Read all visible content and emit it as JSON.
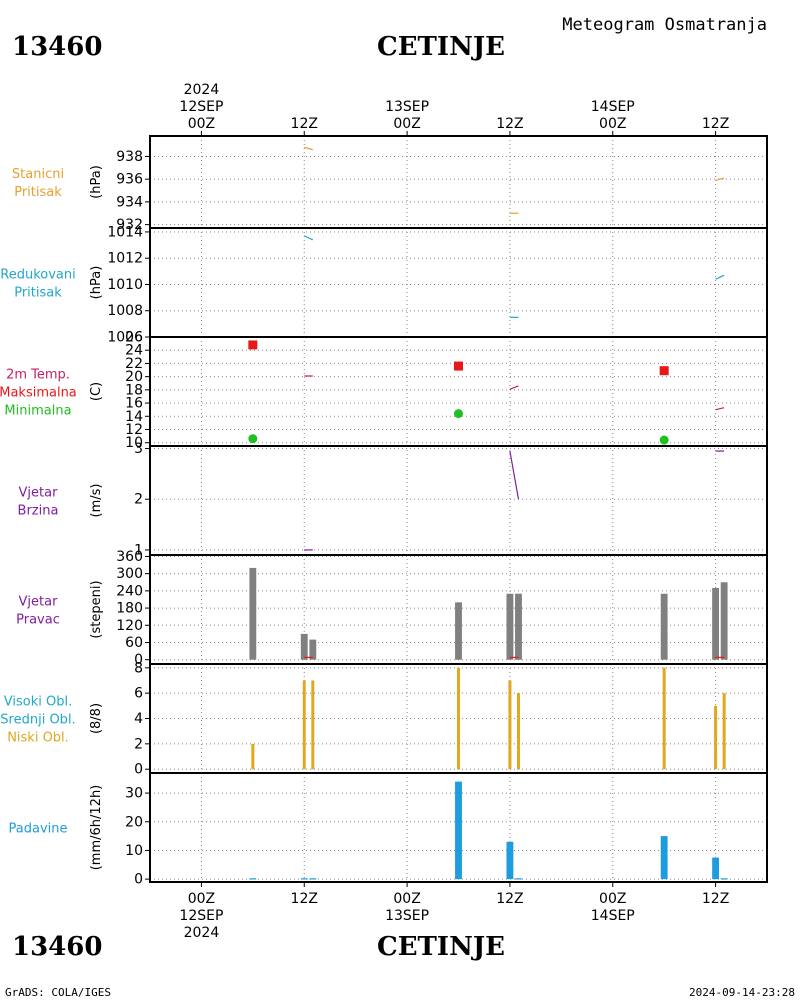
{
  "header": {
    "station_id": "13460",
    "station_name": "CETINJE",
    "product_title": "Meteogram Osmatranja"
  },
  "footer": {
    "station_id": "13460",
    "station_name": "CETINJE",
    "credit": "GrADS: COLA/IGES",
    "timestamp": "2024-09-14-23:28"
  },
  "colors": {
    "station_pressure": "#e8a030",
    "reduced_pressure": "#20a8c8",
    "temp_max": "#e81818",
    "temp_min": "#20c020",
    "temp_line": "#c81e64",
    "wind": "#8020a0",
    "bars_gray": "#808080",
    "cloud": "#e0a820",
    "precip": "#1e9ce0"
  },
  "chart_data": {
    "type": "meteogram",
    "x_axis": {
      "unit": "hours since 12SEP 00Z",
      "range": [
        -6,
        66
      ],
      "ticks": [
        {
          "t": 0,
          "top": [
            "2024",
            "12SEP",
            "00Z"
          ],
          "bottom": [
            "00Z",
            "12SEP",
            "2024"
          ]
        },
        {
          "t": 12,
          "top": [
            "12Z"
          ],
          "bottom": [
            "12Z"
          ]
        },
        {
          "t": 24,
          "top": [
            "13SEP",
            "00Z"
          ],
          "bottom": [
            "00Z",
            "13SEP"
          ]
        },
        {
          "t": 36,
          "top": [
            "12Z"
          ],
          "bottom": [
            "12Z"
          ]
        },
        {
          "t": 48,
          "top": [
            "14SEP",
            "00Z"
          ],
          "bottom": [
            "00Z",
            "14SEP"
          ]
        },
        {
          "t": 60,
          "top": [
            "12Z"
          ],
          "bottom": [
            "12Z"
          ]
        }
      ]
    },
    "panels": [
      {
        "id": "station_pressure",
        "title": [
          "Stanicni",
          "Pritisak"
        ],
        "title_colors": [
          "station_pressure",
          "station_pressure"
        ],
        "ylabel": "(hPa)",
        "ylim": [
          931.7,
          939.8
        ],
        "yticks": [
          932,
          934,
          936,
          938
        ],
        "segments": [
          {
            "x": [
              12,
              13
            ],
            "y": [
              938.8,
              938.6
            ],
            "color": "station_pressure"
          },
          {
            "x": [
              36,
              37
            ],
            "y": [
              933.0,
              933.0
            ],
            "color": "station_pressure"
          },
          {
            "x": [
              60,
              61
            ],
            "y": [
              935.9,
              936.1
            ],
            "color": "station_pressure"
          }
        ]
      },
      {
        "id": "reduced_pressure",
        "title": [
          "Redukovani",
          "Pritisak"
        ],
        "title_colors": [
          "reduced_pressure",
          "reduced_pressure"
        ],
        "ylabel": "(hPa)",
        "ylim": [
          1006,
          1014.3
        ],
        "yticks": [
          1006,
          1008,
          1010,
          1012,
          1014
        ],
        "segments": [
          {
            "x": [
              12,
              13
            ],
            "y": [
              1013.7,
              1013.4
            ],
            "color": "reduced_pressure"
          },
          {
            "x": [
              36,
              37
            ],
            "y": [
              1007.5,
              1007.5
            ],
            "color": "reduced_pressure"
          },
          {
            "x": [
              60,
              61
            ],
            "y": [
              1010.4,
              1010.7
            ],
            "color": "reduced_pressure"
          }
        ]
      },
      {
        "id": "temperature",
        "title": [
          "2m Temp.",
          "Maksimalna",
          "Minimalna"
        ],
        "title_colors": [
          "temp_line",
          "temp_max",
          "temp_min"
        ],
        "ylabel": "(C)",
        "ylim": [
          9.5,
          26
        ],
        "yticks": [
          10,
          12,
          14,
          16,
          18,
          20,
          22,
          24,
          26
        ],
        "segments": [
          {
            "x": [
              12,
              13
            ],
            "y": [
              20.1,
              20.1
            ],
            "color": "temp_line"
          },
          {
            "x": [
              36,
              37
            ],
            "y": [
              18.1,
              18.6
            ],
            "color": "temp_line"
          },
          {
            "x": [
              60,
              61
            ],
            "y": [
              15.0,
              15.3
            ],
            "color": "temp_line"
          }
        ],
        "max_points": {
          "x": [
            6,
            30,
            54
          ],
          "y": [
            24.8,
            21.6,
            20.9
          ]
        },
        "min_points": {
          "x": [
            6,
            30,
            54
          ],
          "y": [
            10.6,
            14.4,
            10.4
          ]
        }
      },
      {
        "id": "wind_speed",
        "title": [
          "Vjetar",
          "Brzina"
        ],
        "title_colors": [
          "wind",
          "wind"
        ],
        "ylabel": "(m/s)",
        "ylim": [
          0.9,
          3.05
        ],
        "yticks": [
          1,
          2,
          3
        ],
        "segments": [
          {
            "x": [
              12,
              13
            ],
            "y": [
              1.0,
              1.0
            ],
            "color": "wind"
          },
          {
            "x": [
              36,
              37
            ],
            "y": [
              2.95,
              2.0
            ],
            "color": "wind"
          },
          {
            "x": [
              60,
              61
            ],
            "y": [
              2.95,
              2.95
            ],
            "color": "wind"
          }
        ]
      },
      {
        "id": "wind_direction",
        "title": [
          "Vjetar",
          "Pravac"
        ],
        "title_colors": [
          "wind",
          "wind"
        ],
        "ylabel": "(stepeni)",
        "ylim": [
          -15,
          365
        ],
        "yticks": [
          0,
          60,
          120,
          180,
          240,
          300,
          360
        ],
        "bar_width": 0.8,
        "bars": [
          {
            "x": 6,
            "v": 320,
            "color": "bars_gray"
          },
          {
            "x": 12,
            "v": 90,
            "color": "bars_gray"
          },
          {
            "x": 13,
            "v": 70,
            "color": "bars_gray"
          },
          {
            "x": 30,
            "v": 200,
            "color": "bars_gray"
          },
          {
            "x": 36,
            "v": 230,
            "color": "bars_gray"
          },
          {
            "x": 37,
            "v": 230,
            "color": "bars_gray"
          },
          {
            "x": 54,
            "v": 230,
            "color": "bars_gray"
          },
          {
            "x": 60,
            "v": 250,
            "color": "bars_gray"
          },
          {
            "x": 61,
            "v": 270,
            "color": "bars_gray"
          }
        ],
        "segments": [
          {
            "x": [
              12,
              13
            ],
            "y": [
              8,
              8
            ],
            "color": "temp_max"
          },
          {
            "x": [
              36,
              37
            ],
            "y": [
              8,
              8
            ],
            "color": "temp_max"
          },
          {
            "x": [
              60,
              61
            ],
            "y": [
              8,
              8
            ],
            "color": "temp_max"
          }
        ]
      },
      {
        "id": "clouds",
        "title": [
          "Visoki Obl.",
          "Srednji Obl.",
          "Niski Obl."
        ],
        "title_colors": [
          "reduced_pressure",
          "reduced_pressure",
          "cloud"
        ],
        "ylabel": "(8/8)",
        "ylim": [
          -0.3,
          8.3
        ],
        "yticks": [
          0,
          2,
          4,
          6,
          8
        ],
        "bar_width": 0.35,
        "bars": [
          {
            "x": 6,
            "v": 2,
            "color": "cloud"
          },
          {
            "x": 12,
            "v": 7,
            "color": "cloud"
          },
          {
            "x": 13,
            "v": 7,
            "color": "cloud"
          },
          {
            "x": 30,
            "v": 8,
            "color": "cloud"
          },
          {
            "x": 36,
            "v": 7,
            "color": "cloud"
          },
          {
            "x": 37,
            "v": 6,
            "color": "cloud"
          },
          {
            "x": 54,
            "v": 8,
            "color": "cloud"
          },
          {
            "x": 60,
            "v": 5,
            "color": "cloud"
          },
          {
            "x": 61,
            "v": 6,
            "color": "cloud"
          }
        ]
      },
      {
        "id": "precipitation",
        "title": [
          "Padavine"
        ],
        "title_colors": [
          "precip"
        ],
        "ylabel": "(mm/6h/12h)",
        "ylim": [
          -1,
          37
        ],
        "yticks": [
          0,
          10,
          20,
          30
        ],
        "bar_width": 0.8,
        "bars": [
          {
            "x": 6,
            "v": 0.3,
            "color": "precip"
          },
          {
            "x": 12,
            "v": 0.3,
            "color": "precip"
          },
          {
            "x": 13,
            "v": 0.3,
            "color": "precip"
          },
          {
            "x": 30,
            "v": 34,
            "color": "precip"
          },
          {
            "x": 36,
            "v": 13,
            "color": "precip"
          },
          {
            "x": 37,
            "v": 0.3,
            "color": "precip"
          },
          {
            "x": 54,
            "v": 15,
            "color": "precip"
          },
          {
            "x": 60,
            "v": 7.5,
            "color": "precip"
          },
          {
            "x": 61,
            "v": 0.3,
            "color": "precip"
          }
        ]
      }
    ]
  }
}
